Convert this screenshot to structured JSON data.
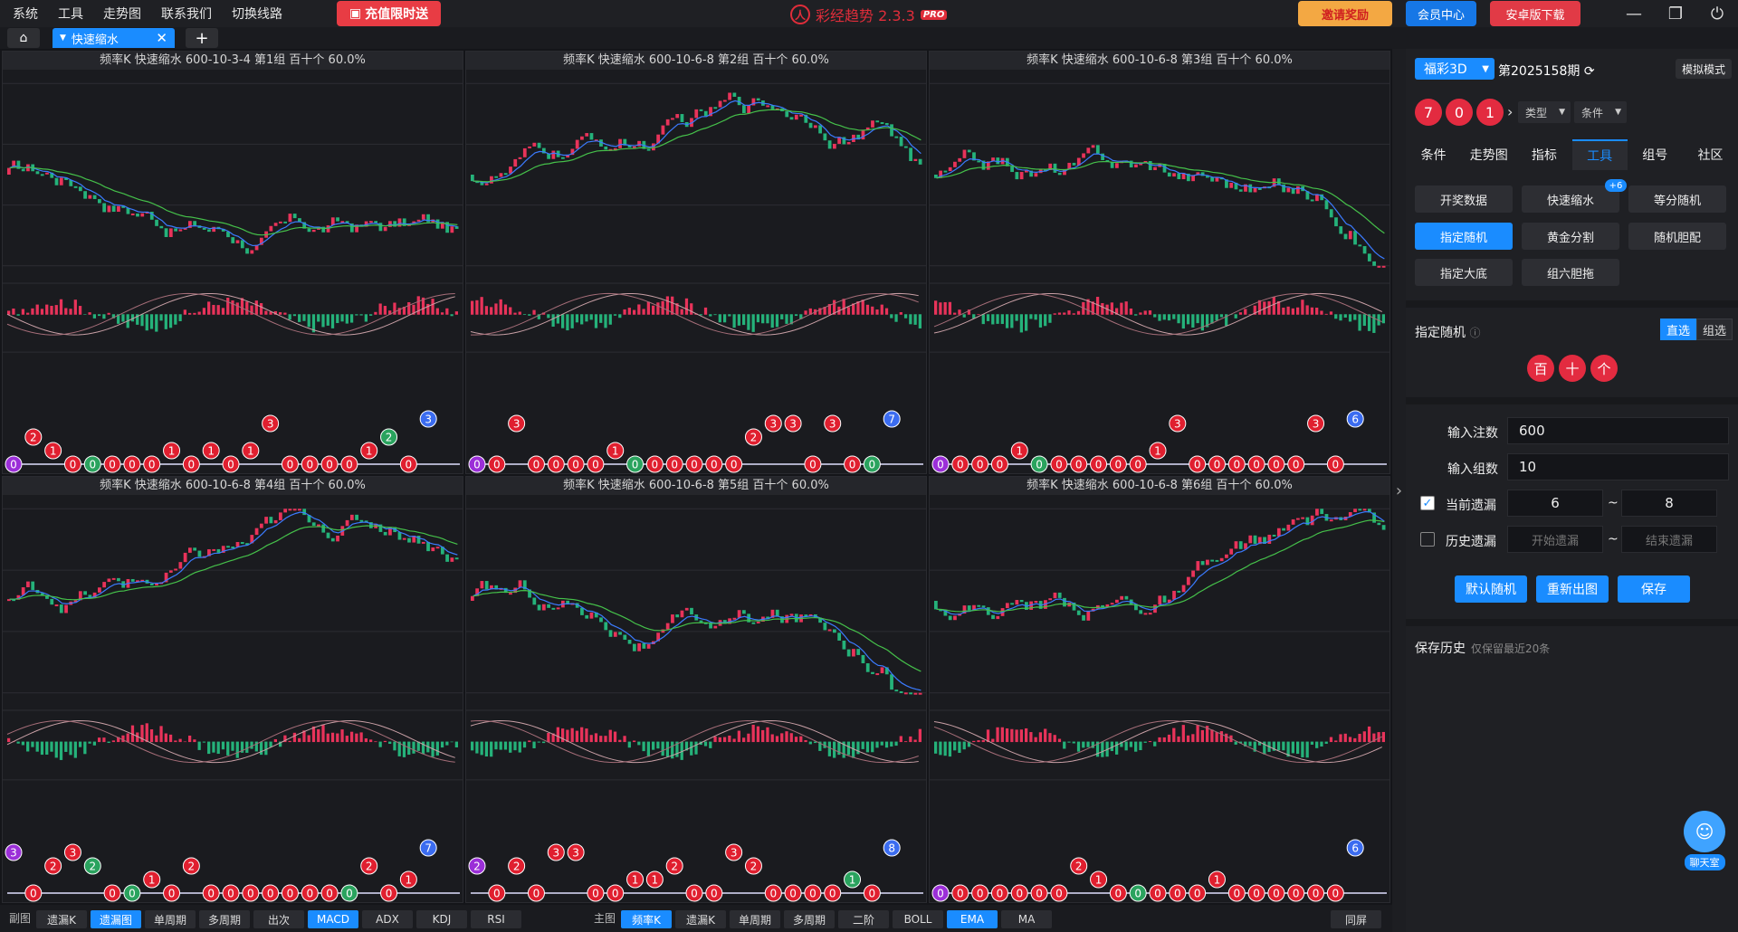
{
  "menu": [
    "系统",
    "工具",
    "走势图",
    "联系我们",
    "切换线路"
  ],
  "promo": "充值限时送",
  "brand": {
    "name": "彩经趋势 2.3.3",
    "badge": "PRO"
  },
  "top_buttons": {
    "invite": "邀请奖励",
    "member": "会员中心",
    "android": "安卓版下载"
  },
  "tab": {
    "label": "快速缩水",
    "add": "+"
  },
  "panels": [
    {
      "title": "频率K  快速缩水  600-10-3-4 第1组  百十个  60.0%",
      "last": "3"
    },
    {
      "title": "频率K  快速缩水  600-10-6-8 第2组  百十个  60.0%",
      "last": "7"
    },
    {
      "title": "频率K  快速缩水  600-10-6-8 第3组  百十个  60.0%",
      "last": "6"
    },
    {
      "title": "频率K  快速缩水  600-10-6-8 第4组  百十个  60.0%",
      "last": "7"
    },
    {
      "title": "频率K  快速缩水  600-10-6-8 第5组  百十个  60.0%",
      "last": "8"
    },
    {
      "title": "频率K  快速缩水  600-10-6-8 第6组  百十个  60.0%",
      "last": "6"
    }
  ],
  "bottom": {
    "sub_label": "副图",
    "sub": [
      "遗漏K",
      "遗漏图",
      "单周期",
      "多周期",
      "出次",
      "MACD",
      "ADX",
      "KDJ",
      "RSI"
    ],
    "main_label": "主图",
    "main": [
      "频率K",
      "遗漏K",
      "单周期",
      "多周期",
      "二阶",
      "BOLL",
      "EMA",
      "MA"
    ],
    "screen": "同屏"
  },
  "side": {
    "lottery": "福彩3D",
    "period": "第2025158期",
    "sim": "模拟模式",
    "balls": [
      "7",
      "0",
      "1"
    ],
    "type": "类型",
    "cond": "条件",
    "tabs": [
      "条件",
      "走势图",
      "指标",
      "工具",
      "组号",
      "社区"
    ],
    "tools": [
      "开奖数据",
      "快速缩水",
      "等分随机",
      "指定随机",
      "黄金分割",
      "随机胆配",
      "指定大底",
      "组六胆拖"
    ],
    "badge": "+6",
    "random_label": "指定随机",
    "seg": [
      "直选",
      "组选"
    ],
    "positions": [
      "百",
      "十",
      "个"
    ],
    "fields": {
      "bets_label": "输入注数",
      "bets": "600",
      "groups_label": "输入组数",
      "groups": "10",
      "cur_label": "当前遗漏",
      "cur_from": "6",
      "cur_to": "8",
      "hist_label": "历史遗漏",
      "hist_from": "开始遗漏",
      "hist_to": "结束遗漏",
      "tilde": "~"
    },
    "actions": [
      "默认随机",
      "重新出图",
      "保存"
    ],
    "history": "保存历史",
    "history_note": "仅保留最近20条",
    "chat": "聊天室"
  }
}
